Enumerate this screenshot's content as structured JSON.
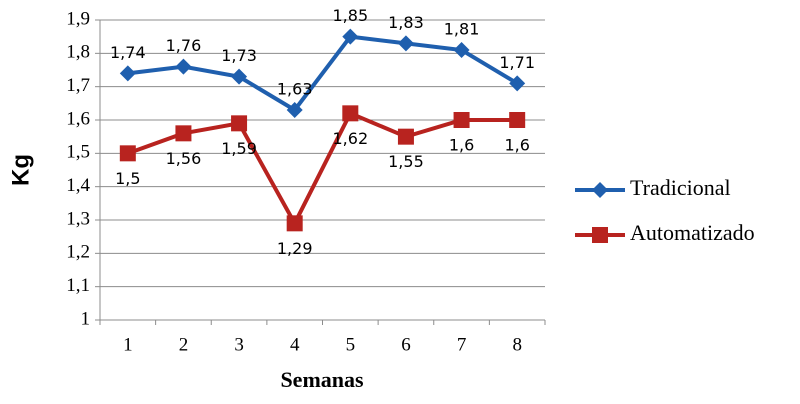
{
  "chart_data": {
    "type": "line",
    "x_label": "Semanas",
    "y_label": "Kg",
    "categories": [
      "1",
      "2",
      "3",
      "4",
      "5",
      "6",
      "7",
      "8"
    ],
    "series": [
      {
        "name": "Tradicional",
        "color": "#1f5fae",
        "marker": "diamond",
        "values": [
          1.74,
          1.76,
          1.73,
          1.63,
          1.85,
          1.83,
          1.81,
          1.71
        ],
        "value_labels": [
          "1,74",
          "1,76",
          "1,73",
          "1,63",
          "1,85",
          "1,83",
          "1,81",
          "1,71"
        ]
      },
      {
        "name": "Automatizado",
        "color": "#b8231f",
        "marker": "square",
        "values": [
          1.5,
          1.56,
          1.59,
          1.29,
          1.62,
          1.55,
          1.6,
          1.6
        ],
        "value_labels": [
          "1,5",
          "1,56",
          "1,59",
          "1,29",
          "1,62",
          "1,55",
          "1,6",
          "1,6"
        ]
      }
    ],
    "ylim": [
      1,
      1.9
    ],
    "yticks": [
      1,
      {
        "value": 1.1,
        "label": "1,1"
      },
      {
        "value": 1.2,
        "label": "1,2"
      },
      {
        "value": 1.3,
        "label": "1,3"
      },
      {
        "value": 1.4,
        "label": "1,4"
      },
      {
        "value": 1.5,
        "label": "1,5"
      },
      {
        "value": 1.6,
        "label": "1,6"
      },
      {
        "value": 1.7,
        "label": "1,7"
      },
      {
        "value": 1.8,
        "label": "1,8"
      },
      {
        "value": 1.9,
        "label": "1,9"
      }
    ],
    "grid": true,
    "legend": "right"
  }
}
